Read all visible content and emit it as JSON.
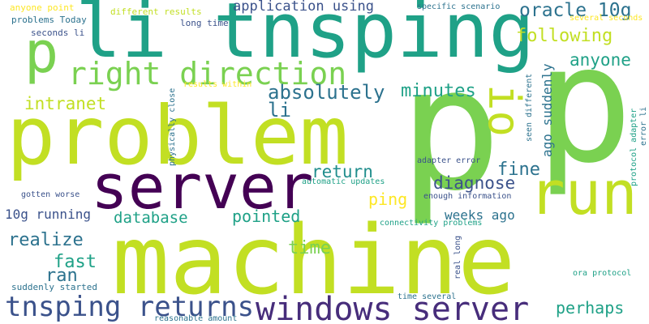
{
  "background": "#ffffff",
  "palette": {
    "lime": "#c2df23",
    "green": "#7ad151",
    "teal": "#1fa187",
    "teal_dark": "#218e8d",
    "blue": "#2c728e",
    "navy": "#3b528b",
    "indigo": "#472d7b",
    "purple": "#440154",
    "yellow": "#fde725",
    "light_green": "#5ec962"
  },
  "words": {
    "machine": "machine",
    "problem": "problem",
    "p_big": "p",
    "p_right": "p",
    "li_tnsping": "li tnsping",
    "server": "server",
    "run": "run",
    "windows_server": "windows server",
    "tnsping_returns": "tnsping returns",
    "right_direction": "right direction",
    "p_small": "p",
    "io": "io",
    "oracle_10g": "oracle 10g",
    "following": "following",
    "anyone_big": "anyone",
    "absolutely": "absolutely",
    "minutes": "minutes",
    "intranet": "intranet",
    "li_mid": "li",
    "return": "return",
    "fine": "fine",
    "diagnose": "diagnose",
    "ping": "ping",
    "database": "database",
    "pointed": "pointed",
    "ten_g_running": "10g running",
    "weeks_ago": "weeks ago",
    "realize": "realize",
    "time": "time",
    "fast": "fast",
    "ran": "ran",
    "perhaps": "perhaps",
    "application_using": "application using",
    "ago_suddenly": "ago suddenly",
    "anyone_point": "anyone point",
    "problems_today": "problems Today",
    "seconds_li": "seconds li",
    "different_results": "different results",
    "long_time": "long time",
    "specific_scenario": "specific scenario",
    "several_seconds": "several seconds",
    "results_within": "results within",
    "physically_close": "physically close",
    "seen_different": "seen different",
    "adapter_error": "adapter error",
    "automatic_updates": "automatic updates",
    "enough_information": "enough information",
    "gotten_worse": "gotten worse",
    "connectivity_problems": "connectivity problems",
    "real_long": "real long",
    "suddenly_started": "suddenly started",
    "ora_protocol": "ora protocol",
    "time_several": "time several",
    "reasonable_amount": "reasonable amount",
    "protocol_adapter": "protocol adapter",
    "error_li": "error li"
  }
}
